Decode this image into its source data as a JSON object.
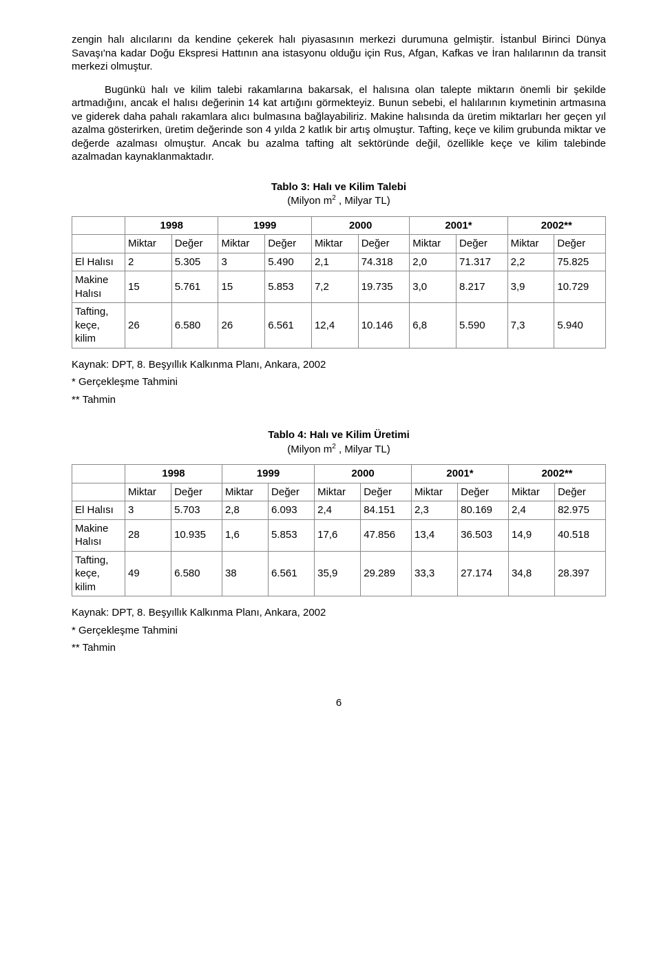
{
  "para1": "zengin halı alıcılarını da kendine çekerek halı piyasasının merkezi durumuna gelmiştir. İstanbul Birinci Dünya Savaşı'na kadar Doğu Ekspresi Hattının ana istasyonu olduğu için  Rus, Afgan, Kafkas ve İran halılarının da transit merkezi olmuştur.",
  "para2": "Bugünkü halı ve kilim talebi rakamlarına bakarsak, el halısına olan talepte miktarın önemli bir şekilde artmadığını, ancak el halısı değerinin 14 kat artığını görmekteyiz. Bunun sebebi, el halılarının kıymetinin artmasına ve giderek daha pahalı rakamlara alıcı bulmasına bağlayabiliriz. Makine halısında da üretim miktarları her geçen yıl azalma gösterirken, üretim değerinde son 4 yılda 2 katlık bir artış olmuştur. Tafting, keçe ve kilim grubunda miktar ve değerde azalması olmuştur. Ancak bu azalma tafting alt sektöründe değil, özellikle keçe ve kilim talebinde azalmadan kaynaklanmaktadır.",
  "table3": {
    "title": "Tablo 3: Halı ve Kilim Talebi",
    "subtitle_pre": "(Milyon m",
    "subtitle_sup": "2",
    "subtitle_post": " , Milyar TL)",
    "years": [
      "1998",
      "1999",
      "2000",
      "2001*",
      "2002**"
    ],
    "subheaders": [
      "Miktar",
      "Değer",
      "Miktar",
      "Değer",
      "Miktar",
      "Değer",
      "Miktar",
      "Değer",
      "Miktar",
      "Değer"
    ],
    "rows": [
      {
        "label": "El Halısı",
        "cells": [
          "2",
          "5.305",
          "3",
          "5.490",
          "2,1",
          "74.318",
          "2,0",
          "71.317",
          "2,2",
          "75.825"
        ]
      },
      {
        "label": "Makine Halısı",
        "cells": [
          "15",
          "5.761",
          "15",
          "5.853",
          "7,2",
          "19.735",
          "3,0",
          "8.217",
          "3,9",
          "10.729"
        ]
      },
      {
        "label": "Tafting, keçe, kilim",
        "cells": [
          "26",
          "6.580",
          "26",
          "6.561",
          "12,4",
          "10.146",
          "6,8",
          "5.590",
          "7,3",
          "5.940"
        ]
      }
    ]
  },
  "source": "Kaynak: DPT, 8. Beşyıllık Kalkınma Planı, Ankara, 2002",
  "note1": "* Gerçekleşme Tahmini",
  "note2": "** Tahmin",
  "table4": {
    "title": "Tablo 4: Halı ve Kilim Üretimi",
    "subtitle_pre": "(Milyon m",
    "subtitle_sup": "2",
    "subtitle_post": " , Milyar TL)",
    "years": [
      "1998",
      "1999",
      "2000",
      "2001*",
      "2002**"
    ],
    "subheaders": [
      "Miktar",
      "Değer",
      "Miktar",
      "Değer",
      "Miktar",
      "Değer",
      "Miktar",
      "Değer",
      "Miktar",
      "Değer"
    ],
    "rows": [
      {
        "label": "El Halısı",
        "cells": [
          "3",
          "5.703",
          "2,8",
          "6.093",
          "2,4",
          "84.151",
          "2,3",
          "80.169",
          "2,4",
          "82.975"
        ]
      },
      {
        "label": "Makine Halısı",
        "cells": [
          "28",
          "10.935",
          "1,6",
          "5.853",
          "17,6",
          "47.856",
          "13,4",
          "36.503",
          "14,9",
          "40.518"
        ]
      },
      {
        "label": "Tafting, keçe, kilim",
        "cells": [
          "49",
          "6.580",
          "38",
          "6.561",
          "35,9",
          "29.289",
          "33,3",
          "27.174",
          "34,8",
          "28.397"
        ]
      }
    ]
  },
  "page_number": "6"
}
